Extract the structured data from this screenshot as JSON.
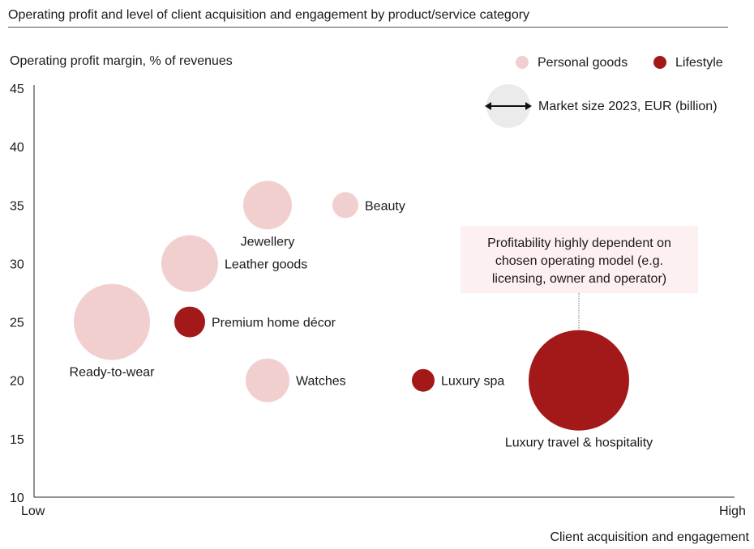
{
  "chart_data": {
    "type": "scatter",
    "title": "Operating profit and level of client acquisition and engagement by product/service category",
    "ylabel": "Operating profit margin, % of revenues",
    "xlabel": "Client acquisition and engagement",
    "x_tick_labels": [
      "Low",
      "High"
    ],
    "xlim": [
      0,
      9
    ],
    "ylim": [
      10,
      45
    ],
    "yticks": [
      10,
      15,
      20,
      25,
      30,
      35,
      40,
      45
    ],
    "grid": false,
    "legend": {
      "placement": "top-right",
      "entries": [
        {
          "name": "Personal goods",
          "color": "#f2cfcf"
        },
        {
          "name": "Lifestyle",
          "color": "#a3191a"
        }
      ],
      "size_label": "Market size 2023, EUR (billion)",
      "size_color": "#ebebeb"
    },
    "annotation": {
      "text": [
        "Profitability highly dependent on",
        "chosen operating model (e.g.",
        "licensing, owner and operator)"
      ],
      "target": "Luxury travel & hospitality"
    },
    "points": [
      {
        "label": "Ready-to-wear",
        "x": 1,
        "y": 25,
        "size_rel": 2209,
        "category": "Personal goods",
        "label_pos": "below"
      },
      {
        "label": "Premium home décor",
        "x": 2,
        "y": 25,
        "size_rel": 361,
        "category": "Lifestyle",
        "label_pos": "right"
      },
      {
        "label": "Leather goods",
        "x": 2,
        "y": 30,
        "size_rel": 1225,
        "category": "Personal goods",
        "label_pos": "right"
      },
      {
        "label": "Jewellery",
        "x": 3,
        "y": 35,
        "size_rel": 900,
        "category": "Personal goods",
        "label_pos": "below"
      },
      {
        "label": "Beauty",
        "x": 4,
        "y": 35,
        "size_rel": 256,
        "category": "Personal goods",
        "label_pos": "right"
      },
      {
        "label": "Watches",
        "x": 3,
        "y": 20,
        "size_rel": 729,
        "category": "Personal goods",
        "label_pos": "right"
      },
      {
        "label": "Luxury spa",
        "x": 5,
        "y": 20,
        "size_rel": 196,
        "category": "Lifestyle",
        "label_pos": "right"
      },
      {
        "label": "Luxury travel & hospitality",
        "x": 7,
        "y": 20,
        "size_rel": 3844,
        "category": "Lifestyle",
        "label_pos": "below"
      }
    ]
  }
}
